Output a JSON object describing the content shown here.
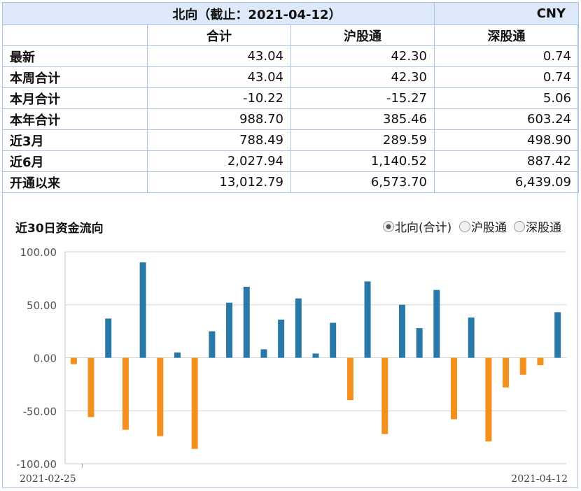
{
  "table": {
    "title": "北向（截止：2021-04-12）",
    "currency": "CNY",
    "columns": [
      "合计",
      "沪股通",
      "深股通"
    ],
    "rows": [
      {
        "label": "最新",
        "values": [
          "43.04",
          "42.30",
          "0.74"
        ]
      },
      {
        "label": "本周合计",
        "values": [
          "43.04",
          "42.30",
          "0.74"
        ]
      },
      {
        "label": "本月合计",
        "values": [
          "-10.22",
          "-15.27",
          "5.06"
        ]
      },
      {
        "label": "本年合计",
        "values": [
          "988.70",
          "385.46",
          "603.24"
        ]
      },
      {
        "label": "近3月",
        "values": [
          "788.49",
          "289.59",
          "498.90"
        ]
      },
      {
        "label": "近6月",
        "values": [
          "2,027.94",
          "1,140.52",
          "887.42"
        ]
      },
      {
        "label": "开通以来",
        "values": [
          "13,012.79",
          "6,573.70",
          "6,439.09"
        ]
      }
    ]
  },
  "chart_data": {
    "type": "bar",
    "title": "近30日资金流向",
    "legend": {
      "placement": "top-right",
      "options": [
        "北向(合计)",
        "沪股通",
        "深股通"
      ],
      "selected": "北向(合计)"
    },
    "ylim": [
      -100,
      100
    ],
    "yticks": [
      "100.00",
      "50.00",
      "0.00",
      "-50.00",
      "-100.00"
    ],
    "x_start_label": "2021-02-25",
    "x_end_label": "2021-04-12",
    "grid": true,
    "colors": {
      "positive": "#2878a8",
      "negative": "#f3901e"
    },
    "values": [
      -6,
      -56,
      37,
      -68,
      90,
      -74,
      5,
      -86,
      25,
      52,
      67,
      8,
      36,
      56,
      4,
      33,
      -40,
      72,
      -72,
      50,
      28,
      64,
      -58,
      38,
      -79,
      -28,
      -16,
      -7,
      43
    ]
  }
}
